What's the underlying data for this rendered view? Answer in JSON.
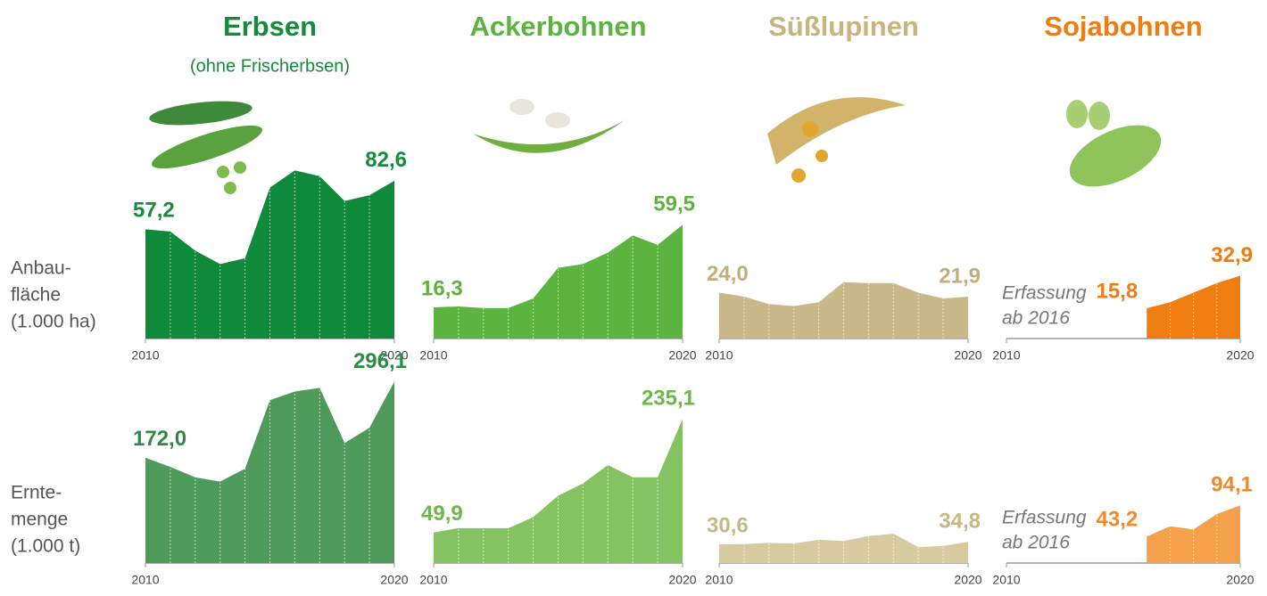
{
  "columns": [
    {
      "title": "Erbsen",
      "subtitle": "(ohne Frischerbsen)",
      "color": "#178a3c"
    },
    {
      "title": "Ackerbohnen",
      "color": "#5cb33f"
    },
    {
      "title": "Süßlupinen",
      "color": "#c8b47c"
    },
    {
      "title": "Sojabohnen",
      "color": "#ef7d12"
    }
  ],
  "rows": [
    {
      "label": [
        "Anbau-",
        "fläche",
        "(1.000 ha)"
      ]
    },
    {
      "label": [
        "Ernte-",
        "menge",
        "(1.000 t)"
      ]
    }
  ],
  "chart_data": [
    {
      "type": "area",
      "x": [
        2010,
        2011,
        2012,
        2013,
        2014,
        2015,
        2016,
        2017,
        2018,
        2019,
        2020
      ],
      "values": [
        57.2,
        56,
        46,
        39,
        42,
        79,
        88,
        85,
        72,
        75,
        82.6
      ],
      "value_labels": [
        "57,2",
        null,
        null,
        null,
        null,
        null,
        null,
        null,
        null,
        null,
        "82,6"
      ],
      "color": "#0f8a3a",
      "label_color": "#178a3c",
      "xlim": [
        2010,
        2020
      ],
      "xticks": [
        2010,
        2020
      ],
      "ylim": [
        0,
        90
      ]
    },
    {
      "type": "area",
      "x": [
        2010,
        2011,
        2012,
        2013,
        2014,
        2015,
        2016,
        2017,
        2018,
        2019,
        2020
      ],
      "values": [
        16.3,
        16.8,
        16,
        16,
        21,
        37,
        39,
        45,
        54,
        49,
        59.5
      ],
      "value_labels": [
        "16,3",
        null,
        null,
        null,
        null,
        null,
        null,
        null,
        null,
        null,
        "59,5"
      ],
      "color": "#5cb33f",
      "label_color": "#5cb33f",
      "xlim": [
        2010,
        2020
      ],
      "xticks": [
        2010,
        2020
      ],
      "ylim": [
        0,
        90
      ]
    },
    {
      "type": "area",
      "x": [
        2010,
        2011,
        2012,
        2013,
        2014,
        2015,
        2016,
        2017,
        2018,
        2019,
        2020
      ],
      "values": [
        24,
        22,
        18,
        17,
        19,
        29.5,
        29,
        29,
        24,
        21,
        21.9
      ],
      "value_labels": [
        "24,0",
        null,
        null,
        null,
        null,
        null,
        null,
        null,
        null,
        null,
        "21,9"
      ],
      "color": "#c9b98a",
      "label_color": "#c2ae78",
      "xlim": [
        2010,
        2020
      ],
      "xticks": [
        2010,
        2020
      ],
      "ylim": [
        0,
        90
      ]
    },
    {
      "type": "area",
      "x": [
        2010,
        2011,
        2012,
        2013,
        2014,
        2015,
        2016,
        2017,
        2018,
        2019,
        2020
      ],
      "values": [
        null,
        null,
        null,
        null,
        null,
        null,
        15.8,
        19,
        24,
        29,
        32.9
      ],
      "value_labels": [
        null,
        null,
        null,
        null,
        null,
        null,
        "15,8",
        null,
        null,
        null,
        "32,9"
      ],
      "color": "#f07d10",
      "label_color": "#ef7d12",
      "xlim": [
        2010,
        2020
      ],
      "xticks": [
        2010,
        2020
      ],
      "ylim": [
        0,
        90
      ],
      "note": [
        "Erfassung",
        "ab 2016"
      ]
    },
    {
      "type": "area",
      "x": [
        2010,
        2011,
        2012,
        2013,
        2014,
        2015,
        2016,
        2017,
        2018,
        2019,
        2020
      ],
      "values": [
        172,
        157,
        140,
        133,
        154,
        266,
        280,
        286,
        196,
        221,
        296.1
      ],
      "value_labels": [
        "172,0",
        null,
        null,
        null,
        null,
        null,
        null,
        null,
        null,
        null,
        "296,1"
      ],
      "color": "#4e9a5a",
      "label_color": "#2f8a45",
      "xlim": [
        2010,
        2020
      ],
      "xticks": [
        2010,
        2020
      ],
      "ylim": [
        0,
        320
      ]
    },
    {
      "type": "area",
      "x": [
        2010,
        2011,
        2012,
        2013,
        2014,
        2015,
        2016,
        2017,
        2018,
        2019,
        2020
      ],
      "values": [
        49.9,
        57,
        57,
        57,
        75,
        110,
        130,
        160,
        140,
        140,
        235.1
      ],
      "value_labels": [
        "49,9",
        null,
        null,
        null,
        null,
        null,
        null,
        null,
        null,
        null,
        "235,1"
      ],
      "color": "#84c262",
      "label_color": "#6cb84a",
      "xlim": [
        2010,
        2020
      ],
      "xticks": [
        2010,
        2020
      ],
      "ylim": [
        0,
        320
      ]
    },
    {
      "type": "area",
      "x": [
        2010,
        2011,
        2012,
        2013,
        2014,
        2015,
        2016,
        2017,
        2018,
        2019,
        2020
      ],
      "values": [
        30.6,
        31,
        33,
        32,
        38,
        36,
        44,
        48,
        26,
        28,
        34.8
      ],
      "value_labels": [
        "30,6",
        null,
        null,
        null,
        null,
        null,
        null,
        null,
        null,
        null,
        "34,8"
      ],
      "color": "#d8caa0",
      "label_color": "#c8b683",
      "xlim": [
        2010,
        2020
      ],
      "xticks": [
        2010,
        2020
      ],
      "ylim": [
        0,
        320
      ]
    },
    {
      "type": "area",
      "x": [
        2010,
        2011,
        2012,
        2013,
        2014,
        2015,
        2016,
        2017,
        2018,
        2019,
        2020
      ],
      "values": [
        null,
        null,
        null,
        null,
        null,
        null,
        43.2,
        60,
        55,
        80,
        94.1
      ],
      "value_labels": [
        null,
        null,
        null,
        null,
        null,
        null,
        "43,2",
        null,
        null,
        null,
        "94,1"
      ],
      "color": "#f5a04a",
      "label_color": "#f08a2a",
      "xlim": [
        2010,
        2020
      ],
      "xticks": [
        2010,
        2020
      ],
      "ylim": [
        0,
        320
      ],
      "note": [
        "Erfassung",
        "ab 2016"
      ]
    }
  ]
}
